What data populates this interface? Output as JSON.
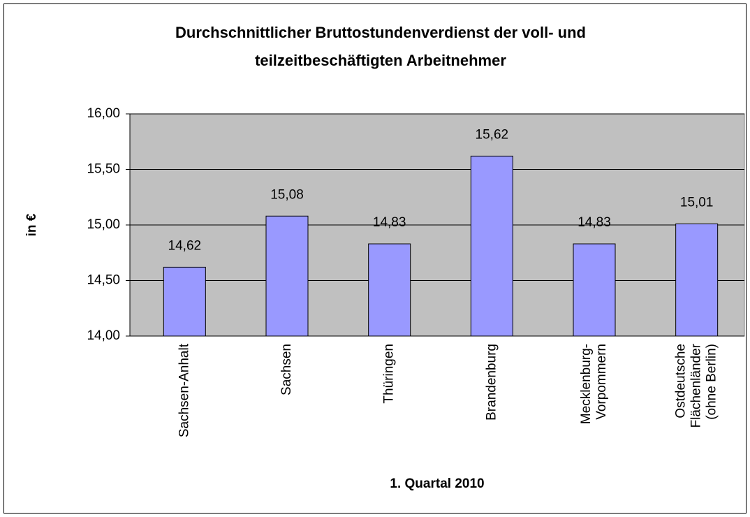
{
  "chart_data": {
    "type": "bar",
    "title": [
      "Durchschnittlicher Bruttostundenverdienst der voll- und",
      "teilzeitbeschäftigten Arbeitnehmer"
    ],
    "y_label": "in €",
    "x_label": "1. Quartal 2010",
    "categories": [
      "Sachsen-Anhalt",
      "Sachsen",
      "Thüringen",
      "Brandenburg",
      "Mecklenburg-\nVorpommern",
      "Ostdeutsche\nFlächenländer\n(ohne Berlin)"
    ],
    "values": [
      14.62,
      15.08,
      14.83,
      15.62,
      14.83,
      15.01
    ],
    "value_labels": [
      "14,62",
      "15,08",
      "14,83",
      "15,62",
      "14,83",
      "15,01"
    ],
    "color": "#9999ff",
    "ylim": [
      14,
      16
    ],
    "yticks": [
      {
        "value": 14,
        "label": "14,00"
      },
      {
        "value": 14.5,
        "label": "14,50"
      },
      {
        "value": 15,
        "label": "15,00"
      },
      {
        "value": 15.5,
        "label": "15,50"
      },
      {
        "value": 16,
        "label": "16,00"
      }
    ],
    "grid": true
  }
}
